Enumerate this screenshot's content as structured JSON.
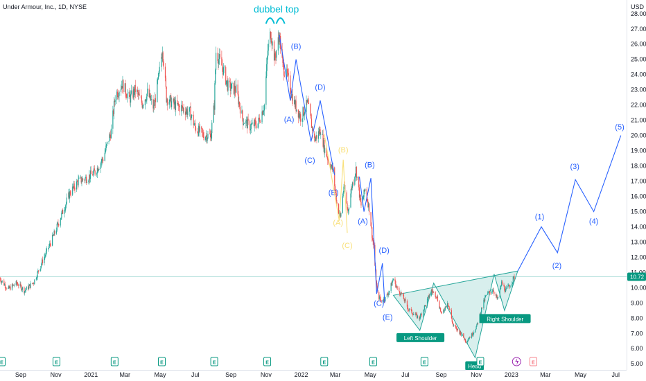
{
  "header": {
    "title": "Under Armour, Inc., 1D, NYSE",
    "currency": "USD"
  },
  "price_label": {
    "value": "10.72",
    "color": "#089981"
  },
  "colors": {
    "up": "#26a69a",
    "down": "#ef5350",
    "wave_blue": "#2962ff",
    "wave_yellow": "#f9e07a",
    "pattern_fill": "#26a69a",
    "top_annotation": "#00bcd4"
  },
  "chart_data": {
    "type": "candlestick",
    "title": "Under Armour, Inc., 1D, NYSE",
    "ylabel": "USD",
    "ylim": [
      4.6,
      28.9
    ],
    "yticks": [
      "28.00",
      "27.00",
      "26.00",
      "25.00",
      "24.00",
      "23.00",
      "22.00",
      "21.00",
      "20.00",
      "19.00",
      "18.00",
      "17.00",
      "16.00",
      "15.00",
      "14.00",
      "13.00",
      "12.00",
      "11.00",
      "10.00",
      "9.00",
      "8.00",
      "7.00",
      "6.00",
      "5.00"
    ],
    "xticks": [
      {
        "label": "Sep",
        "date": "2020-09-01"
      },
      {
        "label": "Nov",
        "date": "2020-11-01"
      },
      {
        "label": "2021",
        "date": "2021-01-01"
      },
      {
        "label": "Mar",
        "date": "2021-03-01"
      },
      {
        "label": "May",
        "date": "2021-05-01"
      },
      {
        "label": "Jul",
        "date": "2021-07-01"
      },
      {
        "label": "Sep",
        "date": "2021-09-01"
      },
      {
        "label": "Nov",
        "date": "2021-11-01"
      },
      {
        "label": "2022",
        "date": "2022-01-01"
      },
      {
        "label": "Mar",
        "date": "2022-03-01"
      },
      {
        "label": "May",
        "date": "2022-05-01"
      },
      {
        "label": "Jul",
        "date": "2022-07-01"
      },
      {
        "label": "Sep",
        "date": "2022-09-01"
      },
      {
        "label": "Nov",
        "date": "2022-11-01"
      },
      {
        "label": "2023",
        "date": "2023-01-01"
      },
      {
        "label": "Mar",
        "date": "2023-03-01"
      },
      {
        "label": "May",
        "date": "2023-05-01"
      },
      {
        "label": "Jul",
        "date": "2023-07-01"
      }
    ],
    "xlim": [
      "2020-07-27",
      "2023-07-20"
    ],
    "price_path": [
      {
        "date": "2020-07-27",
        "price": 10.6
      },
      {
        "date": "2020-08-10",
        "price": 9.9
      },
      {
        "date": "2020-08-25",
        "price": 10.3
      },
      {
        "date": "2020-09-08",
        "price": 9.8
      },
      {
        "date": "2020-09-24",
        "price": 10.4
      },
      {
        "date": "2020-10-07",
        "price": 11.6
      },
      {
        "date": "2020-10-20",
        "price": 12.7
      },
      {
        "date": "2020-10-30",
        "price": 13.6
      },
      {
        "date": "2020-11-13",
        "price": 15.0
      },
      {
        "date": "2020-11-25",
        "price": 16.2
      },
      {
        "date": "2020-12-10",
        "price": 17.0
      },
      {
        "date": "2020-12-24",
        "price": 17.2
      },
      {
        "date": "2021-01-08",
        "price": 17.6
      },
      {
        "date": "2021-01-22",
        "price": 18.5
      },
      {
        "date": "2021-02-05",
        "price": 20.3
      },
      {
        "date": "2021-02-12",
        "price": 22.6
      },
      {
        "date": "2021-02-24",
        "price": 23.4
      },
      {
        "date": "2021-03-09",
        "price": 22.4
      },
      {
        "date": "2021-03-19",
        "price": 23.0
      },
      {
        "date": "2021-03-31",
        "price": 22.1
      },
      {
        "date": "2021-04-09",
        "price": 22.8
      },
      {
        "date": "2021-04-20",
        "price": 21.8
      },
      {
        "date": "2021-04-30",
        "price": 24.2
      },
      {
        "date": "2021-05-05",
        "price": 25.8
      },
      {
        "date": "2021-05-12",
        "price": 22.5
      },
      {
        "date": "2021-05-26",
        "price": 22.0
      },
      {
        "date": "2021-06-08",
        "price": 21.8
      },
      {
        "date": "2021-06-22",
        "price": 21.5
      },
      {
        "date": "2021-07-01",
        "price": 20.5
      },
      {
        "date": "2021-07-16",
        "price": 20.0
      },
      {
        "date": "2021-07-28",
        "price": 20.0
      },
      {
        "date": "2021-08-03",
        "price": 22.0
      },
      {
        "date": "2021-08-06",
        "price": 25.5
      },
      {
        "date": "2021-08-17",
        "price": 24.5
      },
      {
        "date": "2021-08-27",
        "price": 23.2
      },
      {
        "date": "2021-09-10",
        "price": 23.0
      },
      {
        "date": "2021-09-22",
        "price": 21.0
      },
      {
        "date": "2021-10-04",
        "price": 20.6
      },
      {
        "date": "2021-10-18",
        "price": 20.8
      },
      {
        "date": "2021-10-29",
        "price": 22.0
      },
      {
        "date": "2021-11-04",
        "price": 25.6
      },
      {
        "date": "2021-11-09",
        "price": 26.8
      },
      {
        "date": "2021-11-16",
        "price": 25.0
      },
      {
        "date": "2021-11-24",
        "price": 26.6
      },
      {
        "date": "2021-11-30",
        "price": 24.5
      },
      {
        "date": "2021-12-08",
        "price": 23.9
      },
      {
        "date": "2021-12-18",
        "price": 22.3
      },
      {
        "date": "2021-12-31",
        "price": 21.2
      },
      {
        "date": "2022-01-12",
        "price": 22.1
      },
      {
        "date": "2022-01-24",
        "price": 19.7
      },
      {
        "date": "2022-02-04",
        "price": 20.4
      },
      {
        "date": "2022-02-10",
        "price": 19.2
      },
      {
        "date": "2022-02-18",
        "price": 18.3
      },
      {
        "date": "2022-02-25",
        "price": 17.7
      },
      {
        "date": "2022-03-04",
        "price": 15.5
      },
      {
        "date": "2022-03-10",
        "price": 14.6
      },
      {
        "date": "2022-03-16",
        "price": 16.7
      },
      {
        "date": "2022-03-23",
        "price": 15.0
      },
      {
        "date": "2022-03-30",
        "price": 16.7
      },
      {
        "date": "2022-04-06",
        "price": 17.8
      },
      {
        "date": "2022-04-15",
        "price": 15.3
      },
      {
        "date": "2022-04-22",
        "price": 16.5
      },
      {
        "date": "2022-04-29",
        "price": 15.2
      },
      {
        "date": "2022-05-06",
        "price": 12.8
      },
      {
        "date": "2022-05-10",
        "price": 11.0
      },
      {
        "date": "2022-05-13",
        "price": 9.6
      },
      {
        "date": "2022-05-20",
        "price": 9.1
      },
      {
        "date": "2022-05-27",
        "price": 9.3
      },
      {
        "date": "2022-06-03",
        "price": 9.8
      },
      {
        "date": "2022-06-10",
        "price": 10.6
      },
      {
        "date": "2022-06-17",
        "price": 9.9
      },
      {
        "date": "2022-06-24",
        "price": 9.6
      },
      {
        "date": "2022-07-06",
        "price": 8.6
      },
      {
        "date": "2022-07-15",
        "price": 8.3
      },
      {
        "date": "2022-07-25",
        "price": 8.0
      },
      {
        "date": "2022-08-05",
        "price": 8.9
      },
      {
        "date": "2022-08-15",
        "price": 9.8
      },
      {
        "date": "2022-08-24",
        "price": 9.5
      },
      {
        "date": "2022-09-02",
        "price": 8.2
      },
      {
        "date": "2022-09-12",
        "price": 9.1
      },
      {
        "date": "2022-09-22",
        "price": 7.5
      },
      {
        "date": "2022-10-05",
        "price": 7.0
      },
      {
        "date": "2022-10-14",
        "price": 6.5
      },
      {
        "date": "2022-10-24",
        "price": 6.9
      },
      {
        "date": "2022-11-02",
        "price": 7.5
      },
      {
        "date": "2022-11-10",
        "price": 8.6
      },
      {
        "date": "2022-11-18",
        "price": 9.5
      },
      {
        "date": "2022-11-30",
        "price": 9.9
      },
      {
        "date": "2022-12-08",
        "price": 9.2
      },
      {
        "date": "2022-12-15",
        "price": 10.3
      },
      {
        "date": "2022-12-22",
        "price": 9.8
      },
      {
        "date": "2022-12-30",
        "price": 10.2
      },
      {
        "date": "2023-01-06",
        "price": 10.7
      }
    ],
    "annotations": [
      {
        "text": "dubbel top",
        "date": "2021-11-14",
        "price": 27.8,
        "color": "#00bcd4",
        "type": "label"
      }
    ],
    "waves": [
      {
        "color": "#2962ff",
        "points": [
          {
            "date": "2021-11-24",
            "price": 26.6
          },
          {
            "date": "2021-12-13",
            "price": 22.3
          },
          {
            "date": "2021-12-23",
            "price": 25.0
          },
          {
            "date": "2022-01-18",
            "price": 19.6
          },
          {
            "date": "2022-02-03",
            "price": 22.3
          },
          {
            "date": "2022-02-28",
            "price": 17.4
          }
        ],
        "labels": [
          {
            "text": "(A)",
            "date": "2021-12-11",
            "price": 20.9
          },
          {
            "text": "(B)",
            "date": "2021-12-23",
            "price": 25.7
          },
          {
            "text": "(C)",
            "date": "2022-01-16",
            "price": 18.2
          },
          {
            "text": "(D)",
            "date": "2022-02-03",
            "price": 23.0
          },
          {
            "text": "(E)",
            "date": "2022-02-26",
            "price": 16.1
          }
        ]
      },
      {
        "color": "#f9e07a",
        "points": [
          {
            "date": "2022-02-10",
            "price": 20.1
          },
          {
            "date": "2022-03-08",
            "price": 14.4
          },
          {
            "date": "2022-03-15",
            "price": 18.4
          },
          {
            "date": "2022-03-22",
            "price": 13.6
          }
        ],
        "labels": [
          {
            "text": "(A)",
            "date": "2022-03-06",
            "price": 14.1
          },
          {
            "text": "(B)",
            "date": "2022-03-15",
            "price": 18.9
          },
          {
            "text": "(C)",
            "date": "2022-03-22",
            "price": 12.6
          }
        ]
      },
      {
        "color": "#2962ff",
        "points": [
          {
            "date": "2022-04-12",
            "price": 17.3
          },
          {
            "date": "2022-04-20",
            "price": 15.0
          },
          {
            "date": "2022-05-02",
            "price": 17.2
          },
          {
            "date": "2022-05-12",
            "price": 9.6
          },
          {
            "date": "2022-05-22",
            "price": 11.6
          },
          {
            "date": "2022-05-26",
            "price": 9.0
          }
        ],
        "labels": [
          {
            "text": "(A)",
            "date": "2022-04-18",
            "price": 14.2
          },
          {
            "text": "(B)",
            "date": "2022-04-30",
            "price": 17.9
          },
          {
            "text": "(C)",
            "date": "2022-05-16",
            "price": 8.8
          },
          {
            "text": "(D)",
            "date": "2022-05-25",
            "price": 12.3
          },
          {
            "text": "(E)",
            "date": "2022-05-31",
            "price": 7.9
          }
        ]
      },
      {
        "color": "#2962ff",
        "points": [
          {
            "date": "2023-01-12",
            "price": 11.1
          },
          {
            "date": "2023-02-22",
            "price": 14.0
          },
          {
            "date": "2023-03-22",
            "price": 12.3
          },
          {
            "date": "2023-04-22",
            "price": 17.1
          },
          {
            "date": "2023-05-24",
            "price": 15.0
          },
          {
            "date": "2023-07-10",
            "price": 20.0
          }
        ],
        "labels": [
          {
            "text": "(1)",
            "date": "2023-02-19",
            "price": 14.5
          },
          {
            "text": "(2)",
            "date": "2023-03-21",
            "price": 11.3
          },
          {
            "text": "(3)",
            "date": "2023-04-21",
            "price": 17.8
          },
          {
            "text": "(4)",
            "date": "2023-05-24",
            "price": 14.2
          },
          {
            "text": "(5)",
            "date": "2023-07-08",
            "price": 20.4
          }
        ]
      }
    ],
    "pattern": {
      "name": "inverse head and shoulders",
      "outline": [
        {
          "date": "2022-06-10",
          "price": 9.5
        },
        {
          "date": "2022-07-26",
          "price": 7.2
        },
        {
          "date": "2022-08-19",
          "price": 10.3
        },
        {
          "date": "2022-10-30",
          "price": 5.4
        },
        {
          "date": "2022-12-02",
          "price": 10.9
        },
        {
          "date": "2022-12-20",
          "price": 8.5
        },
        {
          "date": "2023-01-12",
          "price": 11.1
        },
        {
          "date": "2022-06-10",
          "price": 9.5
        }
      ],
      "labels": [
        {
          "text": "Left Shoulder",
          "date": "2022-07-27",
          "price": 6.7
        },
        {
          "text": "Head",
          "date": "2022-10-29",
          "price": 4.85
        },
        {
          "text": "Right Shoulder",
          "date": "2022-12-21",
          "price": 7.95
        }
      ]
    },
    "price_line": 10.72,
    "event_markers": [
      {
        "date": "2020-07-30",
        "type": "earnings"
      },
      {
        "date": "2020-11-02",
        "type": "earnings"
      },
      {
        "date": "2021-02-11",
        "type": "earnings"
      },
      {
        "date": "2021-05-04",
        "type": "earnings"
      },
      {
        "date": "2021-08-03",
        "type": "earnings"
      },
      {
        "date": "2021-11-03",
        "type": "earnings"
      },
      {
        "date": "2022-02-10",
        "type": "earnings"
      },
      {
        "date": "2022-05-06",
        "type": "earnings"
      },
      {
        "date": "2022-08-03",
        "type": "earnings"
      },
      {
        "date": "2022-11-08",
        "type": "earnings"
      },
      {
        "date": "2023-01-10",
        "type": "split"
      },
      {
        "date": "2023-02-08",
        "type": "earnings-upcoming"
      }
    ]
  }
}
